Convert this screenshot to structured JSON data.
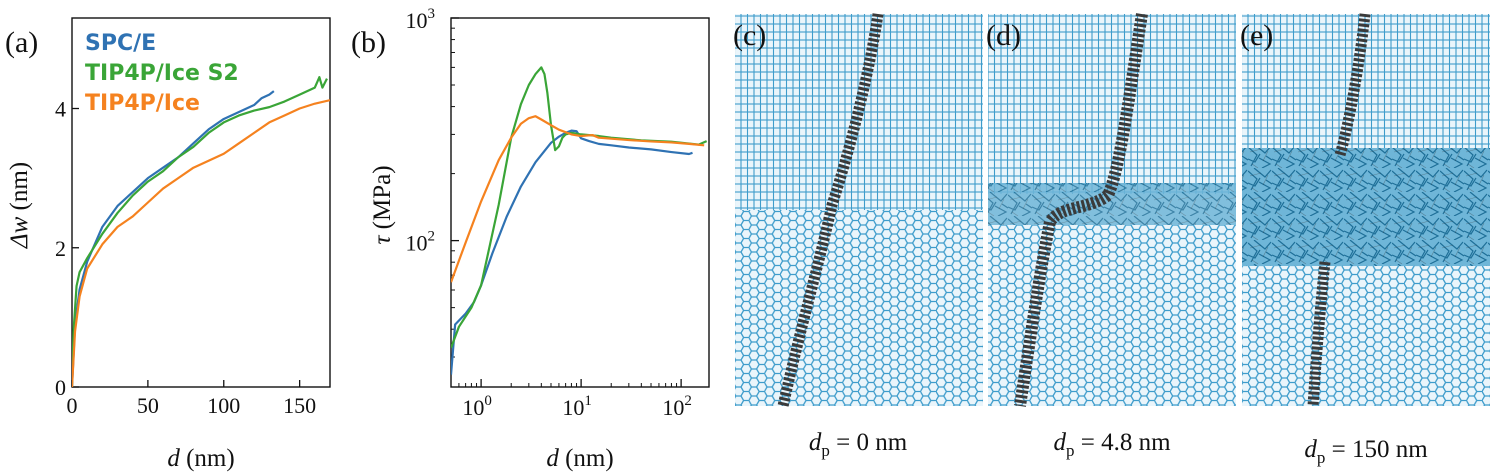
{
  "figure": {
    "panels": [
      {
        "id": "a",
        "letter": "(a)"
      },
      {
        "id": "b",
        "letter": "(b)"
      },
      {
        "id": "c",
        "letter": "(c)",
        "caption_var": "d",
        "caption_sub": "p",
        "caption_val": " = 0 nm"
      },
      {
        "id": "d",
        "letter": "(d)",
        "caption_var": "d",
        "caption_sub": "p",
        "caption_val": " = 4.8 nm"
      },
      {
        "id": "e",
        "letter": "(e)",
        "caption_var": "d",
        "caption_sub": "p",
        "caption_val": " = 150 nm"
      }
    ],
    "colors": {
      "spce": "#2f72b3",
      "tip4p_ice_s2": "#3aa537",
      "tip4p_ice": "#f5821f",
      "ice_lattice": "#3e9ccb",
      "lattice_bg": "#eaf5fb",
      "dislocation": "#3a3a3a"
    }
  },
  "chart_data": [
    {
      "panel": "(a)",
      "type": "line",
      "xlabel_var": "d",
      "xlabel_unit": " (nm)",
      "ylabel_var": "Δw",
      "ylabel_unit": " (nm)",
      "xlim": [
        0,
        170
      ],
      "ylim": [
        0,
        5.3
      ],
      "xticks": [
        0,
        50,
        100,
        150
      ],
      "yticks": [
        0,
        2,
        4
      ],
      "legend_position": "top-left",
      "series": [
        {
          "name": "SPC/E",
          "color": "#2f72b3",
          "x": [
            0,
            2,
            5,
            10,
            20,
            30,
            40,
            50,
            60,
            70,
            80,
            90,
            100,
            110,
            120,
            125,
            130,
            133
          ],
          "y": [
            0,
            0.9,
            1.4,
            1.8,
            2.3,
            2.6,
            2.8,
            3.0,
            3.15,
            3.3,
            3.5,
            3.7,
            3.85,
            3.95,
            4.05,
            4.15,
            4.2,
            4.25
          ]
        },
        {
          "name": "TIP4P/Ice S2",
          "color": "#3aa537",
          "x": [
            0,
            1,
            3,
            5,
            10,
            20,
            30,
            40,
            50,
            60,
            70,
            80,
            90,
            100,
            110,
            120,
            130,
            140,
            150,
            160,
            163,
            165,
            168
          ],
          "y": [
            0,
            0.8,
            1.45,
            1.65,
            1.85,
            2.2,
            2.5,
            2.75,
            2.95,
            3.1,
            3.3,
            3.45,
            3.65,
            3.8,
            3.9,
            3.97,
            4.02,
            4.1,
            4.2,
            4.3,
            4.45,
            4.3,
            4.43
          ]
        },
        {
          "name": "TIP4P/Ice",
          "color": "#f5821f",
          "x": [
            0,
            2,
            5,
            10,
            20,
            30,
            40,
            50,
            60,
            70,
            80,
            90,
            100,
            110,
            120,
            130,
            140,
            150,
            160,
            170
          ],
          "y": [
            0,
            0.8,
            1.3,
            1.7,
            2.05,
            2.3,
            2.45,
            2.65,
            2.85,
            3.0,
            3.15,
            3.25,
            3.35,
            3.5,
            3.65,
            3.8,
            3.9,
            4.0,
            4.07,
            4.12
          ]
        }
      ]
    },
    {
      "panel": "(b)",
      "type": "line",
      "xscale": "log",
      "yscale": "log",
      "xlabel_var": "d",
      "xlabel_unit": " (nm)",
      "ylabel_var": "τ",
      "ylabel_unit": " (MPa)",
      "xlim": [
        0.5,
        190
      ],
      "ylim": [
        22,
        1000
      ],
      "xticks": [
        {
          "base": "10",
          "exp": "0",
          "value": 1
        },
        {
          "base": "10",
          "exp": "1",
          "value": 10
        },
        {
          "base": "10",
          "exp": "2",
          "value": 100
        }
      ],
      "yticks": [
        {
          "base": "10",
          "exp": "2",
          "value": 100
        },
        {
          "base": "10",
          "exp": "3",
          "value": 1000
        }
      ],
      "series": [
        {
          "name": "SPC/E",
          "color": "#2f72b3",
          "x": [
            0.5,
            0.55,
            0.7,
            0.85,
            1.0,
            1.3,
            1.8,
            2.5,
            3.5,
            5.0,
            6.0,
            7.0,
            8.0,
            9.0,
            10,
            12,
            15,
            20,
            30,
            50,
            80,
            120,
            130
          ],
          "y": [
            25,
            42,
            47,
            53,
            63,
            88,
            128,
            175,
            225,
            275,
            293,
            305,
            312,
            310,
            288,
            280,
            272,
            268,
            262,
            257,
            250,
            245,
            248
          ]
        },
        {
          "name": "TIP4P/Ice S2",
          "color": "#3aa537",
          "x": [
            0.5,
            0.6,
            0.8,
            1.0,
            1.5,
            2.0,
            2.5,
            3.0,
            3.5,
            4.0,
            4.3,
            4.6,
            5.0,
            5.5,
            6.0,
            6.5,
            7.0,
            8.0,
            10,
            15,
            20,
            40,
            80,
            150,
            180
          ],
          "y": [
            33,
            41,
            50,
            63,
            145,
            290,
            410,
            500,
            560,
            600,
            560,
            460,
            330,
            255,
            265,
            290,
            300,
            305,
            300,
            295,
            290,
            282,
            278,
            270,
            280
          ]
        },
        {
          "name": "TIP4P/Ice",
          "color": "#f5821f",
          "x": [
            0.5,
            0.7,
            1.0,
            1.5,
            2.0,
            2.5,
            3.0,
            3.5,
            4.0,
            5.0,
            6.0,
            8.0,
            10,
            13,
            15,
            20,
            30,
            50,
            80,
            120,
            170
          ],
          "y": [
            65,
            98,
            150,
            230,
            290,
            335,
            355,
            362,
            350,
            330,
            315,
            300,
            295,
            298,
            290,
            287,
            283,
            279,
            276,
            272,
            268
          ]
        }
      ]
    }
  ]
}
